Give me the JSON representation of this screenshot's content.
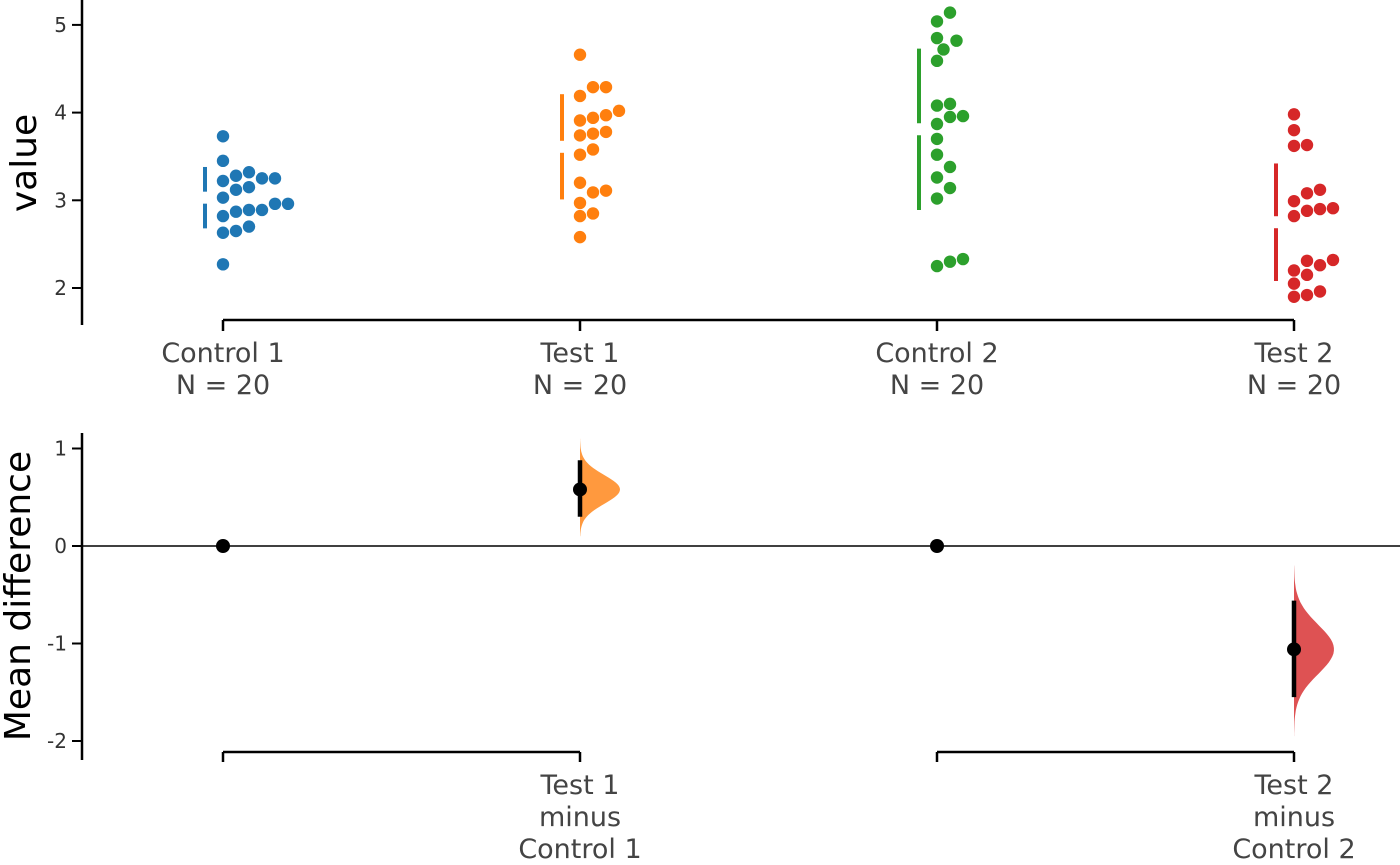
{
  "colors": {
    "control1": "#1f77b4",
    "test1": "#ff7f0e",
    "control2": "#2ca02c",
    "test2": "#d62728",
    "axis": "#000000",
    "effect_point": "#000000"
  },
  "chart_data": [
    {
      "type": "scatter",
      "subtype": "swarm with mean ± SD gapped lines",
      "title": "",
      "ylabel": "value",
      "ylim": [
        1.6,
        5.3
      ],
      "yticks": [
        2,
        3,
        4,
        5
      ],
      "grid": false,
      "categories": [
        {
          "name": "Control 1",
          "n_label": "N = 20",
          "color": "#1f77b4",
          "mean": 3.03,
          "sd": 0.35,
          "values": [
            3.73,
            3.45,
            3.32,
            3.28,
            3.25,
            3.25,
            3.22,
            3.15,
            3.12,
            2.96,
            2.96,
            2.89,
            2.89,
            2.87,
            2.82,
            2.7,
            2.65,
            2.63,
            2.27,
            3.03
          ]
        },
        {
          "name": "Test 1",
          "n_label": "N = 20",
          "color": "#ff7f0e",
          "mean": 3.61,
          "sd": 0.6,
          "values": [
            4.66,
            4.29,
            4.29,
            4.19,
            4.02,
            3.97,
            3.94,
            3.91,
            3.78,
            3.76,
            3.74,
            3.58,
            3.52,
            3.2,
            3.11,
            3.09,
            2.97,
            2.85,
            2.82,
            2.58
          ]
        },
        {
          "name": "Control 2",
          "n_label": "N = 20",
          "color": "#2ca02c",
          "mean": 3.81,
          "sd": 0.92,
          "values": [
            5.14,
            5.04,
            4.85,
            4.82,
            4.72,
            4.59,
            4.1,
            4.08,
            3.96,
            3.95,
            3.87,
            3.7,
            3.52,
            3.38,
            3.26,
            3.14,
            3.02,
            2.33,
            2.3,
            2.25
          ]
        },
        {
          "name": "Test 2",
          "n_label": "N = 20",
          "color": "#d62728",
          "mean": 2.75,
          "sd": 0.67,
          "values": [
            3.98,
            3.8,
            3.63,
            3.62,
            3.12,
            3.08,
            2.99,
            2.91,
            2.9,
            2.88,
            2.82,
            2.32,
            2.31,
            2.26,
            2.2,
            2.15,
            2.05,
            1.96,
            1.92,
            1.9
          ]
        }
      ]
    },
    {
      "type": "scatter",
      "subtype": "mean difference with 95% CI and bootstrap distribution",
      "title": "",
      "ylabel": "Mean difference",
      "ylim": [
        -2.15,
        1.15
      ],
      "yticks": [
        1,
        0,
        -1,
        -2
      ],
      "ytick_labels": [
        "1",
        "0",
        "-1",
        "-2"
      ],
      "grid": false,
      "zero_line": true,
      "comparisons": [
        {
          "label_line1": "Test 1",
          "label_line2": "minus",
          "label_line3": "Control 1",
          "control_mean_diff": 0,
          "test_mean_diff": 0.58,
          "ci": [
            0.3,
            0.88
          ],
          "color": "#ff7f0e",
          "bootstrap_range": [
            0.1,
            1.1
          ]
        },
        {
          "label_line1": "Test 2",
          "label_line2": "minus",
          "label_line3": "Control 2",
          "control_mean_diff": 0,
          "test_mean_diff": -1.06,
          "ci": [
            -1.55,
            -0.56
          ],
          "color": "#d62728",
          "bootstrap_range": [
            -1.95,
            -0.2
          ]
        }
      ]
    }
  ]
}
